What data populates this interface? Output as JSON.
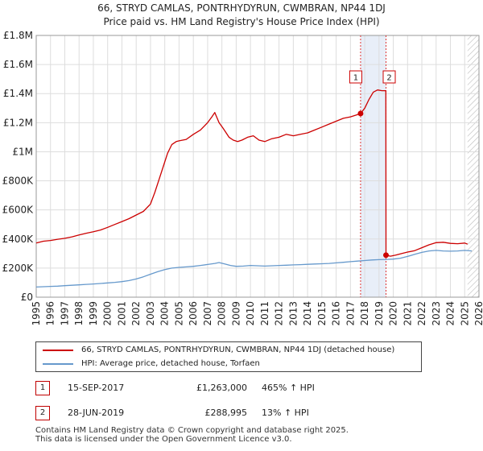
{
  "title_line1": "66, STRYD CAMLAS, PONTRHYDYRUN, CWMBRAN, NP44 1DJ",
  "title_line2": "Price paid vs. HM Land Registry's House Price Index (HPI)",
  "chart_data": {
    "type": "line",
    "title": "Price paid vs. HM Land Registry's House Price Index (HPI)",
    "xlabel": "",
    "ylabel": "",
    "xlim": [
      1995,
      2026
    ],
    "ylim": [
      0,
      1800000
    ],
    "yticks": [
      0,
      200000,
      400000,
      600000,
      800000,
      1000000,
      1200000,
      1400000,
      1600000,
      1800000
    ],
    "ytick_labels": [
      "£0",
      "£200K",
      "£400K",
      "£600K",
      "£800K",
      "£1M",
      "£1.2M",
      "£1.4M",
      "£1.6M",
      "£1.8M"
    ],
    "xticks": [
      1995,
      1996,
      1997,
      1998,
      1999,
      2000,
      2001,
      2002,
      2003,
      2004,
      2005,
      2006,
      2007,
      2008,
      2009,
      2010,
      2011,
      2012,
      2013,
      2014,
      2015,
      2016,
      2017,
      2018,
      2019,
      2020,
      2021,
      2022,
      2023,
      2024,
      2025,
      2026
    ],
    "grid": true,
    "shaded_band": [
      2017.71,
      2019.49
    ],
    "hatched_from": 2025.2,
    "series": [
      {
        "name": "66, STRYD CAMLAS, PONTRHYDYRUN, CWMBRAN, NP44 1DJ (detached house)",
        "color": "#cc0000",
        "x": [
          1995.0,
          1995.5,
          1996.0,
          1996.5,
          1997.0,
          1997.5,
          1998.0,
          1998.5,
          1999.0,
          1999.5,
          2000.0,
          2000.5,
          2001.0,
          2001.5,
          2002.0,
          2002.5,
          2003.0,
          2003.3,
          2003.6,
          2003.9,
          2004.2,
          2004.5,
          2004.8,
          2005.0,
          2005.5,
          2006.0,
          2006.5,
          2007.0,
          2007.3,
          2007.5,
          2007.8,
          2008.1,
          2008.5,
          2008.8,
          2009.1,
          2009.4,
          2009.8,
          2010.2,
          2010.6,
          2011.0,
          2011.5,
          2012.0,
          2012.5,
          2013.0,
          2013.5,
          2014.0,
          2014.5,
          2015.0,
          2015.5,
          2016.0,
          2016.5,
          2017.0,
          2017.4,
          2017.71,
          2018.0,
          2018.3,
          2018.6,
          2018.9,
          2019.2,
          2019.48,
          2019.49,
          2019.8,
          2020.2,
          2020.6,
          2021.0,
          2021.5,
          2022.0,
          2022.5,
          2023.0,
          2023.5,
          2024.0,
          2024.5,
          2025.0,
          2025.2
        ],
        "values": [
          372000,
          385000,
          390000,
          398000,
          405000,
          415000,
          428000,
          440000,
          450000,
          462000,
          480000,
          500000,
          520000,
          540000,
          565000,
          590000,
          640000,
          720000,
          810000,
          900000,
          990000,
          1050000,
          1070000,
          1075000,
          1085000,
          1120000,
          1150000,
          1200000,
          1240000,
          1270000,
          1200000,
          1160000,
          1100000,
          1080000,
          1070000,
          1080000,
          1100000,
          1110000,
          1080000,
          1070000,
          1090000,
          1100000,
          1120000,
          1110000,
          1120000,
          1130000,
          1150000,
          1170000,
          1190000,
          1210000,
          1230000,
          1240000,
          1252000,
          1263000,
          1300000,
          1360000,
          1410000,
          1425000,
          1420000,
          1420000,
          288995,
          282000,
          290000,
          300000,
          310000,
          320000,
          340000,
          360000,
          375000,
          378000,
          370000,
          368000,
          372000,
          365000
        ]
      },
      {
        "name": "HPI: Average price, detached house, Torfaen",
        "color": "#6699cc",
        "x": [
          1995.0,
          1995.5,
          1996.0,
          1996.5,
          1997.0,
          1997.5,
          1998.0,
          1998.5,
          1999.0,
          1999.5,
          2000.0,
          2000.5,
          2001.0,
          2001.5,
          2002.0,
          2002.5,
          2003.0,
          2003.5,
          2004.0,
          2004.5,
          2005.0,
          2005.5,
          2006.0,
          2006.5,
          2007.0,
          2007.5,
          2007.8,
          2008.2,
          2008.6,
          2009.0,
          2009.5,
          2010.0,
          2010.5,
          2011.0,
          2011.5,
          2012.0,
          2012.5,
          2013.0,
          2013.5,
          2014.0,
          2014.5,
          2015.0,
          2015.5,
          2016.0,
          2016.5,
          2017.0,
          2017.5,
          2018.0,
          2018.5,
          2019.0,
          2019.5,
          2020.0,
          2020.5,
          2021.0,
          2021.5,
          2022.0,
          2022.5,
          2023.0,
          2023.5,
          2024.0,
          2024.5,
          2025.0,
          2025.5
        ],
        "values": [
          70000,
          72000,
          74000,
          76000,
          79000,
          82000,
          85000,
          88000,
          91000,
          94000,
          98000,
          102000,
          107000,
          114000,
          125000,
          140000,
          158000,
          175000,
          190000,
          200000,
          205000,
          208000,
          212000,
          218000,
          225000,
          232000,
          238000,
          228000,
          218000,
          212000,
          214000,
          218000,
          216000,
          214000,
          216000,
          218000,
          220000,
          222000,
          224000,
          226000,
          228000,
          230000,
          232000,
          236000,
          240000,
          244000,
          248000,
          252000,
          256000,
          258000,
          260000,
          262000,
          268000,
          280000,
          295000,
          308000,
          318000,
          322000,
          318000,
          316000,
          318000,
          322000,
          318000
        ]
      }
    ],
    "markers": [
      {
        "label": "1",
        "x": 2017.71,
        "value": 1263000
      },
      {
        "label": "2",
        "x": 2019.49,
        "value": 288995
      }
    ]
  },
  "legend": {
    "items": [
      {
        "label": "66, STRYD CAMLAS, PONTRHYDYRUN, CWMBRAN, NP44 1DJ (detached house)",
        "color": "#cc0000"
      },
      {
        "label": "HPI: Average price, detached house, Torfaen",
        "color": "#6699cc"
      }
    ]
  },
  "transactions": [
    {
      "num": "1",
      "date": "15-SEP-2017",
      "price": "£1,263,000",
      "hpi": "465% ↑ HPI"
    },
    {
      "num": "2",
      "date": "28-JUN-2019",
      "price": "£288,995",
      "hpi": "13% ↑ HPI"
    }
  ],
  "footer": {
    "line1": "Contains HM Land Registry data © Crown copyright and database right 2025.",
    "line2": "This data is licensed under the Open Government Licence v3.0."
  }
}
